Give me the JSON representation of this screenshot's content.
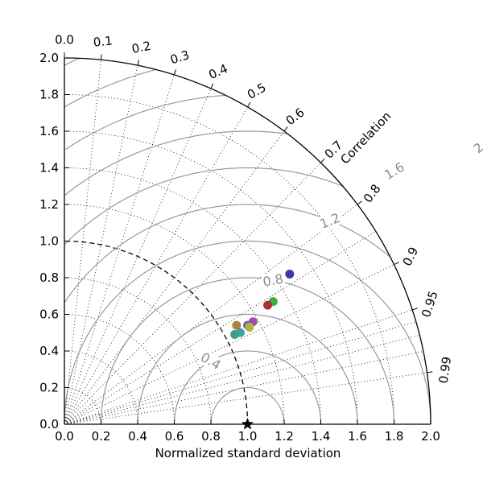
{
  "chart_data": {
    "type": "scatter",
    "diagram": "taylor",
    "xlabel": "Normalized standard deviation",
    "ylabel": "",
    "correlation_label": "Correlation",
    "std_range": [
      0.0,
      2.0
    ],
    "std_ticks": [
      "0.0",
      "0.2",
      "0.4",
      "0.6",
      "0.8",
      "1.0",
      "1.2",
      "1.4",
      "1.6",
      "1.8",
      "2.0"
    ],
    "correlation_ticks": [
      "0.0",
      "0.1",
      "0.2",
      "0.3",
      "0.4",
      "0.5",
      "0.6",
      "0.7",
      "0.8",
      "0.9",
      "0.95",
      "0.99"
    ],
    "rms_contours": [
      0.4,
      0.8,
      1.2,
      1.6,
      2.0
    ],
    "rms_labels": [
      "0.4",
      "0.8",
      "1.2",
      "1.6",
      "2.0"
    ],
    "reference_std": 1.0,
    "grid": true,
    "colors": {
      "rms_contour": "#999999",
      "rms_text": "#8c8c8c",
      "reference_marker": "#000000"
    },
    "points": [
      {
        "x": 1.23,
        "y": 0.82,
        "color": "#3b3baf"
      },
      {
        "x": 1.14,
        "y": 0.67,
        "color": "#3caf3c"
      },
      {
        "x": 1.11,
        "y": 0.65,
        "color": "#a83232"
      },
      {
        "x": 1.03,
        "y": 0.56,
        "color": "#a84aa8"
      },
      {
        "x": 1.0,
        "y": 0.54,
        "color": "#7a5ab0"
      },
      {
        "x": 1.01,
        "y": 0.53,
        "color": "#a8b83c"
      },
      {
        "x": 0.94,
        "y": 0.54,
        "color": "#a8833c"
      },
      {
        "x": 0.96,
        "y": 0.5,
        "color": "#3ba3a8"
      },
      {
        "x": 0.93,
        "y": 0.49,
        "color": "#3aa08c"
      }
    ]
  }
}
